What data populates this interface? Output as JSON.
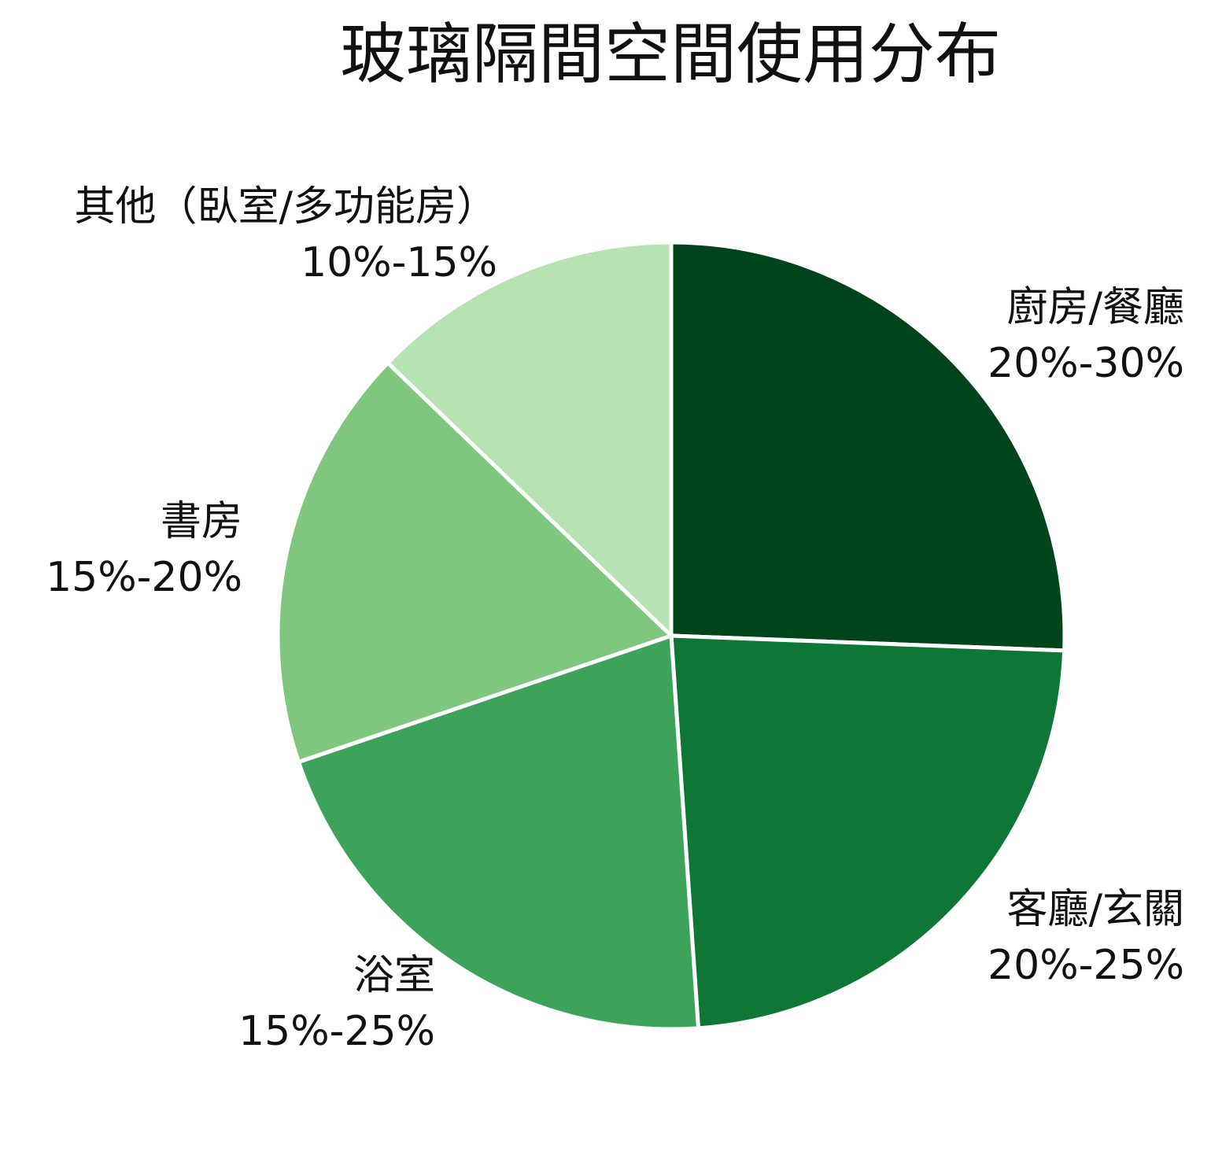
{
  "chart_data": {
    "type": "pie",
    "title": "玻璃隔間空間使用分布",
    "start_angle_deg": 0,
    "direction": "clockwise",
    "slices": [
      {
        "name": "廚房/餐廳",
        "range": "20%-30%",
        "value": 25.6,
        "color": "#00441b"
      },
      {
        "name": "客廳/玄關",
        "range": "20%-25%",
        "value": 23.3,
        "color": "#0e7736"
      },
      {
        "name": "浴室",
        "range": "15%-25%",
        "value": 20.9,
        "color": "#3da35a"
      },
      {
        "name": "書房",
        "range": "15%-20%",
        "value": 17.4,
        "color": "#7fc67f"
      },
      {
        "name": "其他（臥室/多功能房）",
        "range": "10%-15%",
        "value": 12.8,
        "color": "#b7e2b2"
      }
    ]
  }
}
